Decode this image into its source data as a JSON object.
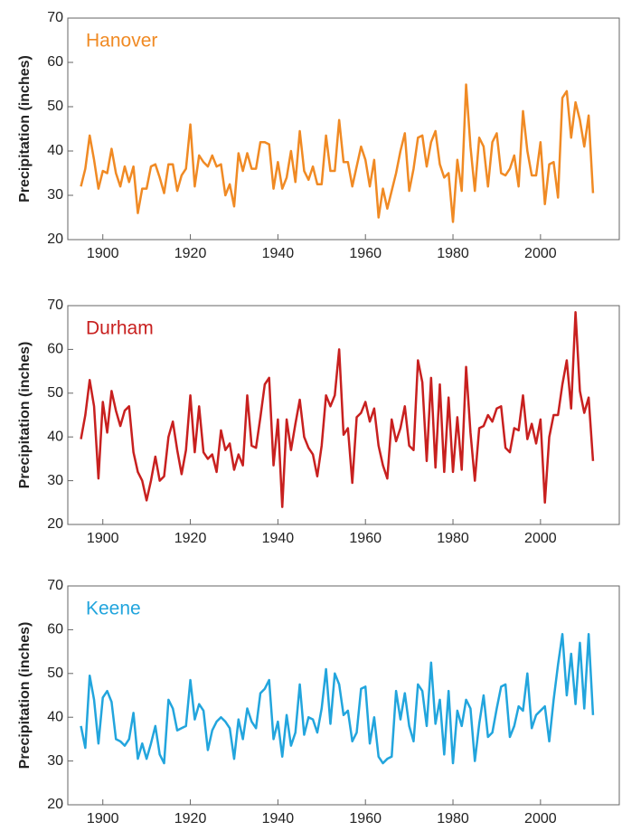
{
  "chart_data": [
    {
      "type": "line",
      "ylabel": "Precipitation (inches)",
      "x": [
        1895,
        1896,
        1897,
        1898,
        1899,
        1900,
        1901,
        1902,
        1903,
        1904,
        1905,
        1906,
        1907,
        1908,
        1909,
        1910,
        1911,
        1912,
        1913,
        1914,
        1915,
        1916,
        1917,
        1918,
        1919,
        1920,
        1921,
        1922,
        1923,
        1924,
        1925,
        1926,
        1927,
        1928,
        1929,
        1930,
        1931,
        1932,
        1933,
        1934,
        1935,
        1936,
        1937,
        1938,
        1939,
        1940,
        1941,
        1942,
        1943,
        1944,
        1945,
        1946,
        1947,
        1948,
        1949,
        1950,
        1951,
        1952,
        1953,
        1954,
        1955,
        1956,
        1957,
        1958,
        1959,
        1960,
        1961,
        1962,
        1963,
        1964,
        1965,
        1966,
        1967,
        1968,
        1969,
        1970,
        1971,
        1972,
        1973,
        1974,
        1975,
        1976,
        1977,
        1978,
        1979,
        1980,
        1981,
        1982,
        1983,
        1984,
        1985,
        1986,
        1987,
        1988,
        1989,
        1990,
        1991,
        1992,
        1993,
        1994,
        1995,
        1996,
        1997,
        1998,
        1999,
        2000,
        2001,
        2002,
        2003,
        2004,
        2005,
        2006,
        2007,
        2008,
        2009,
        2010,
        2011,
        2012
      ],
      "series": [
        {
          "name": "Hanover",
          "color": "#f08a24",
          "values": [
            32,
            36,
            43.5,
            38,
            31.5,
            35.5,
            35,
            40.5,
            35,
            32,
            36.5,
            33,
            36.5,
            26,
            31.5,
            31.5,
            36.5,
            37,
            34,
            30.5,
            37,
            37,
            31,
            34.5,
            36,
            46,
            32,
            39,
            37.5,
            36.5,
            39,
            36.5,
            37,
            30,
            32.5,
            27.5,
            39.5,
            35.5,
            39.5,
            36,
            36,
            42,
            42,
            41.5,
            31.5,
            37.5,
            31.5,
            34,
            40,
            33,
            44.5,
            35.5,
            33.5,
            36.5,
            32.5,
            32.5,
            43.5,
            35.5,
            35.5,
            47,
            37.5,
            37.5,
            32,
            36.5,
            41,
            38,
            32,
            38,
            25,
            31.5,
            27,
            31,
            35,
            40,
            44,
            31,
            36,
            43,
            43.5,
            36.5,
            42,
            44.5,
            37,
            34,
            35,
            24,
            38,
            31,
            55,
            41,
            31,
            43,
            41,
            32,
            42,
            44,
            35,
            34.5,
            36,
            39,
            32,
            49,
            40,
            34.5,
            34.5,
            42,
            28,
            37,
            37.5,
            29.5,
            52,
            53.5,
            43,
            51,
            47,
            41,
            48,
            30.5
          ]
        }
      ],
      "xlim": [
        1892,
        2018
      ],
      "xticks": [
        1900,
        1920,
        1940,
        1960,
        1980,
        2000
      ],
      "ylim": [
        20,
        70
      ],
      "yticks": [
        20,
        30,
        40,
        50,
        60,
        70
      ]
    },
    {
      "type": "line",
      "ylabel": "Precipitation (inches)",
      "x": [
        1895,
        1896,
        1897,
        1898,
        1899,
        1900,
        1901,
        1902,
        1903,
        1904,
        1905,
        1906,
        1907,
        1908,
        1909,
        1910,
        1911,
        1912,
        1913,
        1914,
        1915,
        1916,
        1917,
        1918,
        1919,
        1920,
        1921,
        1922,
        1923,
        1924,
        1925,
        1926,
        1927,
        1928,
        1929,
        1930,
        1931,
        1932,
        1933,
        1934,
        1935,
        1936,
        1937,
        1938,
        1939,
        1940,
        1941,
        1942,
        1943,
        1944,
        1945,
        1946,
        1947,
        1948,
        1949,
        1950,
        1951,
        1952,
        1953,
        1954,
        1955,
        1956,
        1957,
        1958,
        1959,
        1960,
        1961,
        1962,
        1963,
        1964,
        1965,
        1966,
        1967,
        1968,
        1969,
        1970,
        1971,
        1972,
        1973,
        1974,
        1975,
        1976,
        1977,
        1978,
        1979,
        1980,
        1981,
        1982,
        1983,
        1984,
        1985,
        1986,
        1987,
        1988,
        1989,
        1990,
        1991,
        1992,
        1993,
        1994,
        1995,
        1996,
        1997,
        1998,
        1999,
        2000,
        2001,
        2002,
        2003,
        2004,
        2005,
        2006,
        2007,
        2008,
        2009,
        2010,
        2011,
        2012
      ],
      "series": [
        {
          "name": "Durham",
          "color": "#c8201f",
          "values": [
            39.5,
            45,
            53,
            47,
            30.5,
            48,
            41,
            50.5,
            46,
            42.5,
            46,
            47,
            36.5,
            32,
            30,
            25.5,
            30,
            35.5,
            30,
            31,
            40,
            43.5,
            37,
            31.5,
            37,
            49.5,
            36.5,
            47,
            36.5,
            35,
            36,
            32,
            41.5,
            37,
            38.5,
            32.5,
            36,
            33.5,
            49.5,
            38,
            37.5,
            44.5,
            52,
            53.5,
            33.5,
            44,
            24,
            44,
            37,
            43,
            48.5,
            40,
            37.5,
            36,
            31,
            38,
            49.5,
            47,
            49.5,
            60,
            40.5,
            42,
            29.5,
            44.5,
            45.5,
            48,
            43.5,
            46.5,
            38,
            33.5,
            30.5,
            44,
            39,
            42,
            47,
            38,
            37,
            57.5,
            52.5,
            34.5,
            53.5,
            33,
            52,
            32,
            49,
            32,
            44.5,
            32.5,
            56,
            41,
            30,
            42,
            42.5,
            45,
            43.5,
            46.5,
            47,
            37.5,
            36.5,
            42,
            41.5,
            49.5,
            39.5,
            43,
            38.5,
            44,
            25,
            40,
            45,
            45,
            52,
            57.5,
            46.5,
            68.5,
            50.5,
            45.5,
            49,
            34.5
          ]
        }
      ],
      "xlim": [
        1892,
        2018
      ],
      "xticks": [
        1900,
        1920,
        1940,
        1960,
        1980,
        2000
      ],
      "ylim": [
        20,
        70
      ],
      "yticks": [
        20,
        30,
        40,
        50,
        60,
        70
      ]
    },
    {
      "type": "line",
      "ylabel": "Precipitation (inches)",
      "x": [
        1895,
        1896,
        1897,
        1898,
        1899,
        1900,
        1901,
        1902,
        1903,
        1904,
        1905,
        1906,
        1907,
        1908,
        1909,
        1910,
        1911,
        1912,
        1913,
        1914,
        1915,
        1916,
        1917,
        1918,
        1919,
        1920,
        1921,
        1922,
        1923,
        1924,
        1925,
        1926,
        1927,
        1928,
        1929,
        1930,
        1931,
        1932,
        1933,
        1934,
        1935,
        1936,
        1937,
        1938,
        1939,
        1940,
        1941,
        1942,
        1943,
        1944,
        1945,
        1946,
        1947,
        1948,
        1949,
        1950,
        1951,
        1952,
        1953,
        1954,
        1955,
        1956,
        1957,
        1958,
        1959,
        1960,
        1961,
        1962,
        1963,
        1964,
        1965,
        1966,
        1967,
        1968,
        1969,
        1970,
        1971,
        1972,
        1973,
        1974,
        1975,
        1976,
        1977,
        1978,
        1979,
        1980,
        1981,
        1982,
        1983,
        1984,
        1985,
        1986,
        1987,
        1988,
        1989,
        1990,
        1991,
        1992,
        1993,
        1994,
        1995,
        1996,
        1997,
        1998,
        1999,
        2000,
        2001,
        2002,
        2003,
        2004,
        2005,
        2006,
        2007,
        2008,
        2009,
        2010,
        2011,
        2012
      ],
      "series": [
        {
          "name": "Keene",
          "color": "#22a5dd",
          "values": [
            38,
            33,
            49.5,
            44,
            34,
            44.5,
            46,
            43.5,
            35,
            34.5,
            33.5,
            35,
            41,
            30.5,
            34,
            30.5,
            34,
            38,
            31.5,
            29.5,
            44,
            42,
            37,
            37.5,
            38,
            48.5,
            39.5,
            43,
            41.5,
            32.5,
            37,
            39,
            40,
            39,
            37.5,
            30.5,
            39.5,
            35,
            42,
            39,
            37.5,
            45.5,
            46.5,
            48.5,
            35,
            39,
            31,
            40.5,
            33.5,
            36.5,
            47.5,
            36,
            40,
            39.5,
            36.5,
            42,
            51,
            38.5,
            50,
            47.5,
            40.5,
            41.5,
            34.5,
            36.5,
            46.5,
            47,
            34,
            40,
            31,
            29.5,
            30.5,
            31,
            46,
            39.5,
            45.5,
            38,
            34.5,
            47.5,
            46,
            38,
            52.5,
            38.5,
            44,
            31.5,
            46,
            29.5,
            41.5,
            38,
            44,
            42,
            30,
            38.5,
            45,
            35.5,
            36.5,
            42,
            47,
            47.5,
            35.5,
            38,
            42.5,
            41.5,
            50,
            37.5,
            40.5,
            41.5,
            42.5,
            34.5,
            44,
            52,
            59,
            45,
            54.5,
            43,
            57,
            42,
            59,
            40.5
          ]
        }
      ],
      "xlim": [
        1892,
        2018
      ],
      "xticks": [
        1900,
        1920,
        1940,
        1960,
        1980,
        2000
      ],
      "ylim": [
        20,
        70
      ],
      "yticks": [
        20,
        30,
        40,
        50,
        60,
        70
      ]
    }
  ]
}
